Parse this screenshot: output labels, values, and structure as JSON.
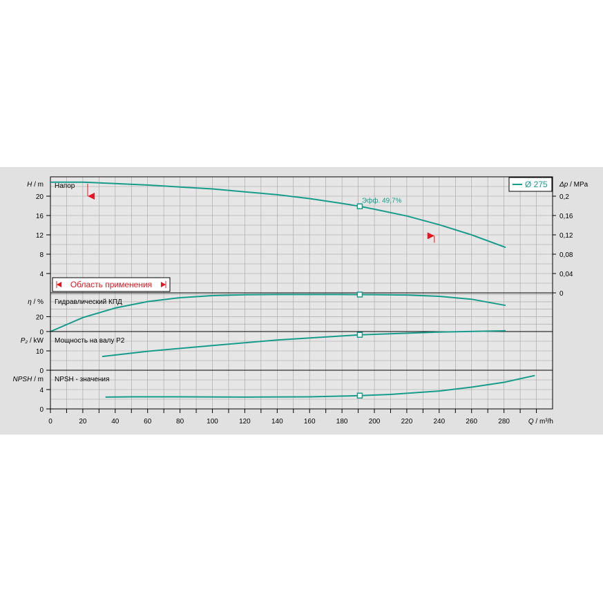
{
  "chart_data": {
    "type": "line",
    "x_axis": {
      "label": "Q",
      "unit": "m³/h",
      "ticks": [
        0,
        20,
        40,
        60,
        80,
        100,
        120,
        140,
        160,
        180,
        200,
        220,
        240,
        260,
        280
      ],
      "range": [
        0,
        310
      ]
    },
    "legend": {
      "label": "Ø 275",
      "placement": "top-right"
    },
    "colors": {
      "curve": "#179c8a",
      "range_marker": "#e8141e",
      "grid": "#a0a0a0",
      "panel_bg": "#e1e1e1",
      "plot_bg": "#e6e6e6"
    },
    "duty_point": {
      "Q": 191
    },
    "panels": [
      {
        "id": "head",
        "axis_label": "H",
        "axis_unit": "m",
        "title": "Напор",
        "y_range": [
          0,
          24
        ],
        "y_ticks": [
          4,
          8,
          12,
          16,
          20
        ],
        "right_axis": {
          "label": "Δp",
          "unit": "MPa",
          "range": [
            0,
            0.24
          ],
          "ticks": [
            "0",
            "0,04",
            "0,08",
            "0,12",
            "0,16",
            "0,2"
          ]
        },
        "annotation": "Эфф.  49,7%",
        "range_label": "Область применения",
        "range_limits": [
          {
            "Q": 23,
            "H": 20
          },
          {
            "Q": 237,
            "H": 11.8
          }
        ],
        "series": {
          "name": "Ø 275",
          "x": [
            0,
            20,
            40,
            60,
            80,
            100,
            120,
            140,
            160,
            180,
            191,
            200,
            220,
            240,
            260,
            281
          ],
          "y": [
            22.9,
            22.9,
            22.6,
            22.3,
            21.9,
            21.5,
            20.9,
            20.3,
            19.5,
            18.5,
            17.9,
            17.3,
            15.9,
            14.1,
            12.0,
            9.4
          ]
        },
        "duty_value": 17.9
      },
      {
        "id": "efficiency",
        "axis_label": "η",
        "axis_unit": "%",
        "title": "Гидравлический КПД",
        "y_range": [
          0,
          52
        ],
        "y_ticks": [
          0,
          20
        ],
        "series": {
          "x": [
            0,
            20,
            40,
            60,
            80,
            100,
            120,
            140,
            160,
            180,
            191,
            200,
            220,
            240,
            260,
            281
          ],
          "y": [
            0,
            18.8,
            31.7,
            40.3,
            45.5,
            48.3,
            49.5,
            49.8,
            49.8,
            49.8,
            49.7,
            49.6,
            49.1,
            47.4,
            43.5,
            35.1
          ]
        },
        "duty_value": 49.7
      },
      {
        "id": "power",
        "axis_label": "P₂",
        "axis_unit": "kW",
        "title": "Мощность на валу P2",
        "y_range": [
          0,
          20
        ],
        "y_ticks": [
          0,
          10
        ],
        "series": {
          "x": [
            32,
            60,
            100,
            140,
            191,
            240,
            281
          ],
          "y": [
            7.1,
            9.8,
            12.8,
            15.6,
            18.3,
            19.7,
            20.4
          ]
        },
        "duty_value": 18.3
      },
      {
        "id": "npsh",
        "axis_label": "NPSH",
        "axis_unit": "m",
        "title": "NPSH - значения",
        "y_range": [
          0,
          8
        ],
        "y_ticks": [
          0,
          4
        ],
        "series": {
          "x": [
            34,
            50,
            80,
            120,
            160,
            191,
            210,
            240,
            260,
            280,
            299
          ],
          "y": [
            2.45,
            2.5,
            2.5,
            2.45,
            2.5,
            2.75,
            3.0,
            3.7,
            4.5,
            5.5,
            6.9
          ]
        },
        "duty_value": 2.75
      }
    ]
  }
}
